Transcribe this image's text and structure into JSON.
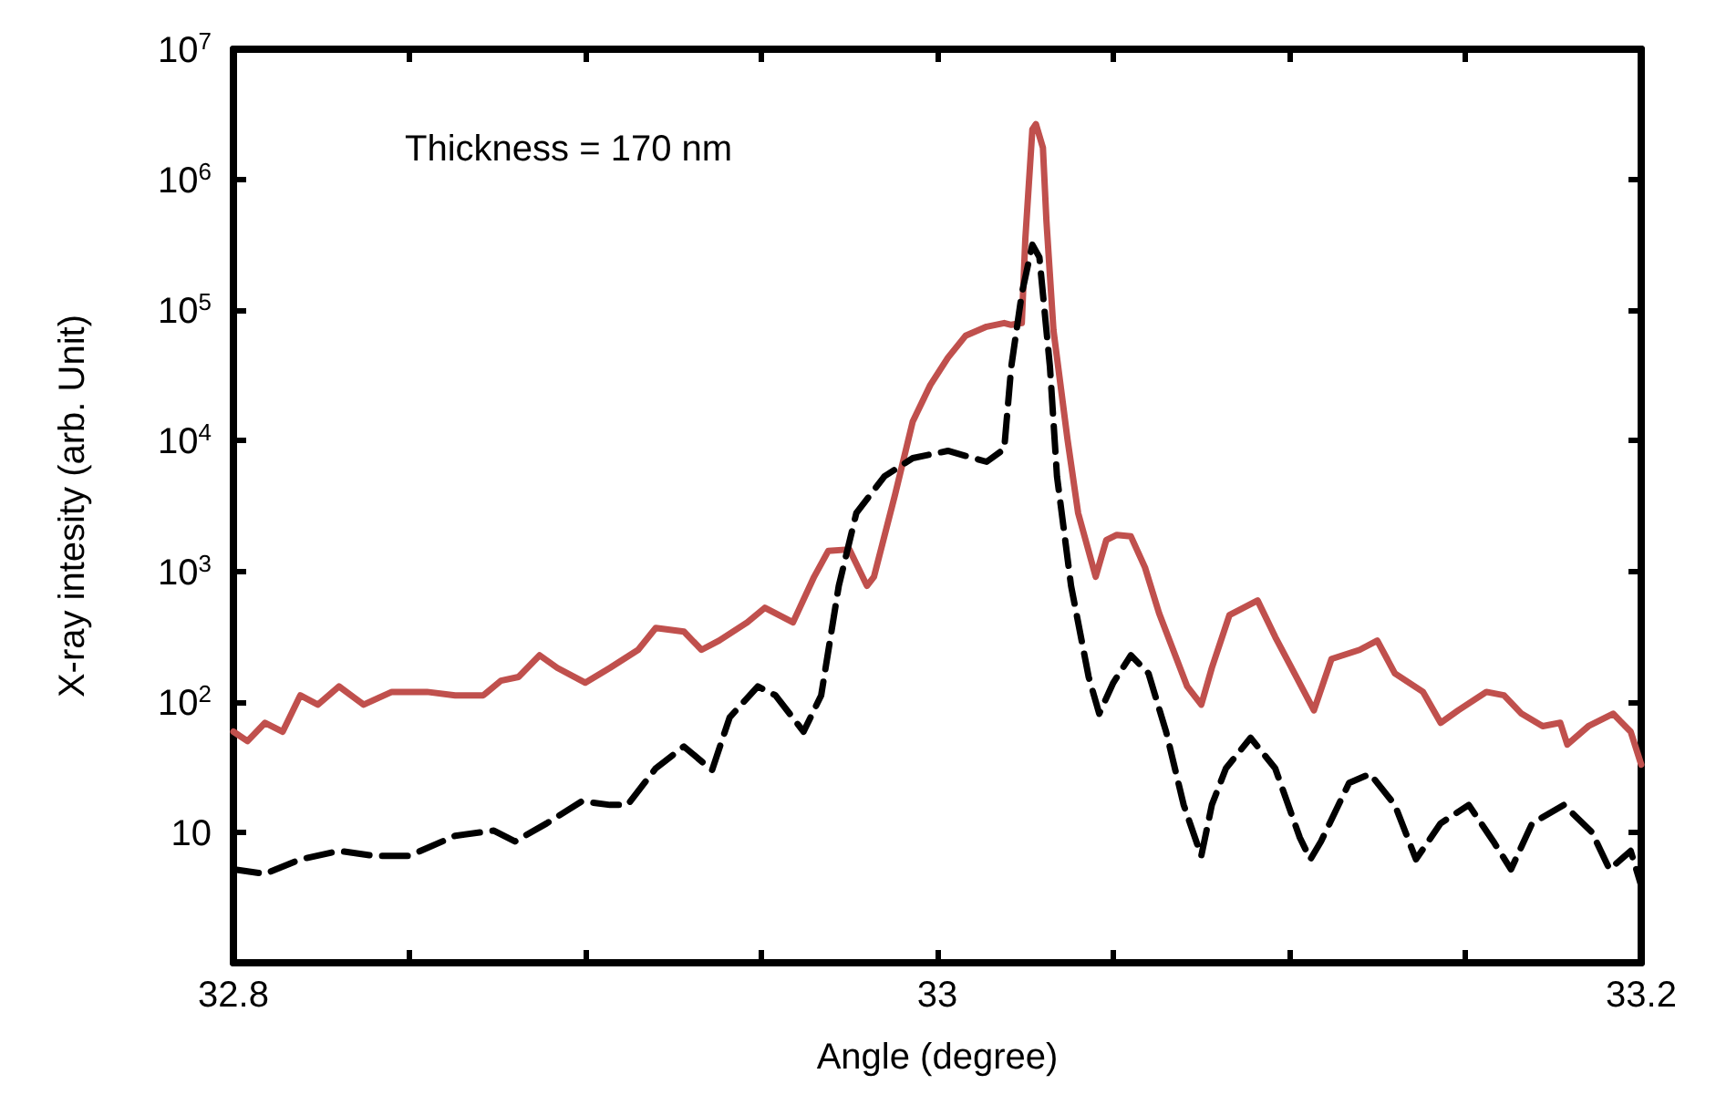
{
  "chart_data": {
    "type": "line",
    "xlabel": "Angle (degree)",
    "ylabel": "X-ray intesity (arb. Unit)",
    "annotations": [
      "Thickness = 170 nm"
    ],
    "xlim": [
      32.8,
      33.2
    ],
    "xticks": [
      32.8,
      {
        "value": 32.85,
        "label": null
      },
      {
        "value": 32.9,
        "label": null
      },
      {
        "value": 32.95,
        "label": null
      },
      33,
      {
        "value": 33.05,
        "label": null
      },
      {
        "value": 33.1,
        "label": null
      },
      {
        "value": 33.15,
        "label": null
      },
      33.2
    ],
    "ylim": [
      1,
      10000000
    ],
    "yticks": [
      10,
      {
        "value": 100,
        "label": "10$^{2}$"
      },
      {
        "value": 1000,
        "label": "10$^{3}$"
      },
      {
        "value": 10000,
        "label": "10$^{4}$"
      },
      {
        "value": 100000,
        "label": "10$^{5}$"
      },
      {
        "value": 1000000,
        "label": "10$^{6}$"
      },
      {
        "value": 10000000,
        "label": "10$^{7}$"
      }
    ],
    "log": "y",
    "grid": false,
    "marker": "none",
    "series": [
      {
        "color": "#c0504d",
        "line_style": "solid",
        "x": [
          32.8,
          32.804,
          32.809,
          32.814,
          32.819,
          32.824,
          32.83,
          32.837,
          32.845,
          32.85,
          32.855,
          32.863,
          32.871,
          32.876,
          32.881,
          32.887,
          32.892,
          32.9,
          32.907,
          32.915,
          32.92,
          32.928,
          32.933,
          32.938,
          32.946,
          32.951,
          32.959,
          32.965,
          32.969,
          32.975,
          32.977,
          32.98,
          32.982,
          32.988,
          32.993,
          32.998,
          33.003,
          33.008,
          33.014,
          33.019,
          33.021,
          33.024,
          33.025,
          33.027,
          33.028,
          33.03,
          33.031,
          33.033,
          33.037,
          33.04,
          33.045,
          33.048,
          33.051,
          33.055,
          33.059,
          33.063,
          33.071,
          33.075,
          33.078,
          33.083,
          33.091,
          33.096,
          33.102,
          33.107,
          33.112,
          33.12,
          33.125,
          33.13,
          33.138,
          33.143,
          33.148,
          33.156,
          33.161,
          33.166,
          33.172,
          33.177,
          33.179,
          33.185,
          33.192,
          33.197,
          33.2
        ],
        "values": [
          59,
          50,
          69,
          59,
          112,
          95,
          131,
          95,
          119,
          119,
          119,
          112,
          112,
          145,
          155,
          227,
          182,
          140,
          182,
          250,
          368,
          345,
          250,
          294,
          406,
          525,
          406,
          908,
          1430,
          1470,
          1140,
          773,
          908,
          3870,
          14000,
          26700,
          43300,
          63700,
          74800,
          79800,
          77300,
          79800,
          351000,
          2430000,
          2670000,
          1760000,
          484000,
          70200,
          10200,
          2800,
          908,
          1730,
          1900,
          1850,
          1070,
          477,
          131,
          95,
          182,
          462,
          597,
          314,
          155,
          86,
          213,
          250,
          294,
          165,
          119,
          69,
          86,
          119,
          112,
          81,
          65,
          69,
          47,
          65,
          81,
          59,
          33
        ]
      },
      {
        "color": "#000000",
        "line_style": "dashed",
        "x": [
          32.8,
          32.809,
          32.819,
          32.83,
          32.84,
          32.85,
          32.863,
          32.874,
          32.88,
          32.889,
          32.899,
          32.907,
          32.912,
          32.92,
          32.928,
          32.936,
          32.941,
          32.949,
          32.954,
          32.962,
          32.967,
          32.972,
          32.977,
          32.985,
          32.993,
          33.003,
          33.014,
          33.019,
          33.021,
          33.024,
          33.027,
          33.029,
          33.032,
          33.034,
          33.038,
          33.043,
          33.046,
          33.05,
          33.055,
          33.06,
          33.065,
          33.07,
          33.075,
          33.078,
          33.082,
          33.089,
          33.096,
          33.103,
          33.106,
          33.109,
          33.117,
          33.123,
          33.13,
          33.136,
          33.143,
          33.151,
          33.158,
          33.163,
          33.169,
          33.178,
          33.186,
          33.191,
          33.197,
          33.2
        ],
        "values": [
          5.2,
          4.8,
          6.2,
          7.2,
          6.6,
          6.6,
          9.4,
          10.3,
          8.5,
          11.7,
          17.3,
          16.2,
          16.2,
          30.9,
          45.4,
          29.9,
          76,
          131,
          112,
          59,
          112,
          773,
          2800,
          5340,
          7360,
          8370,
          6900,
          8650,
          36800,
          134000,
          318000,
          255000,
          36800,
          5340,
          773,
          155,
          81,
          140,
          227,
          165,
          59,
          16.2,
          6.6,
          16.2,
          30.9,
          53,
          30.9,
          9.1,
          6.2,
          8.5,
          23.9,
          28,
          16.2,
          6.2,
          11.7,
          16.2,
          8.5,
          5.2,
          11.7,
          16.2,
          10,
          5.2,
          7.2,
          3.9
        ]
      }
    ]
  }
}
